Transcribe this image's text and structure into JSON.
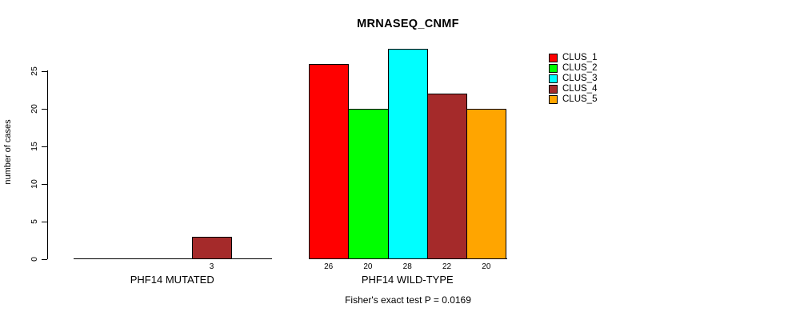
{
  "chart_data": {
    "type": "bar",
    "title": "MRNASEQ_CNMF",
    "ylabel": "number of cases",
    "xlabel": "",
    "ylim": [
      0,
      28
    ],
    "yticks": [
      0,
      5,
      10,
      15,
      20,
      25
    ],
    "grid": false,
    "legend_position": "topright",
    "categories": [
      "PHF14 MUTATED",
      "PHF14 WILD-TYPE"
    ],
    "series": [
      {
        "name": "CLUS_1",
        "color": "#FF0000",
        "values": [
          0,
          26
        ]
      },
      {
        "name": "CLUS_2",
        "color": "#00FF00",
        "values": [
          0,
          20
        ]
      },
      {
        "name": "CLUS_3",
        "color": "#00FFFF",
        "values": [
          0,
          28
        ]
      },
      {
        "name": "CLUS_4",
        "color": "#A52A2A",
        "values": [
          3,
          22
        ]
      },
      {
        "name": "CLUS_5",
        "color": "#FFA500",
        "values": [
          0,
          20
        ]
      }
    ],
    "bar_value_labels_shown_only_when_positive": true,
    "annotation": "Fisher's exact test P = 0.0169",
    "axis_color": "#000000",
    "background_color": "#FFFFFF"
  }
}
